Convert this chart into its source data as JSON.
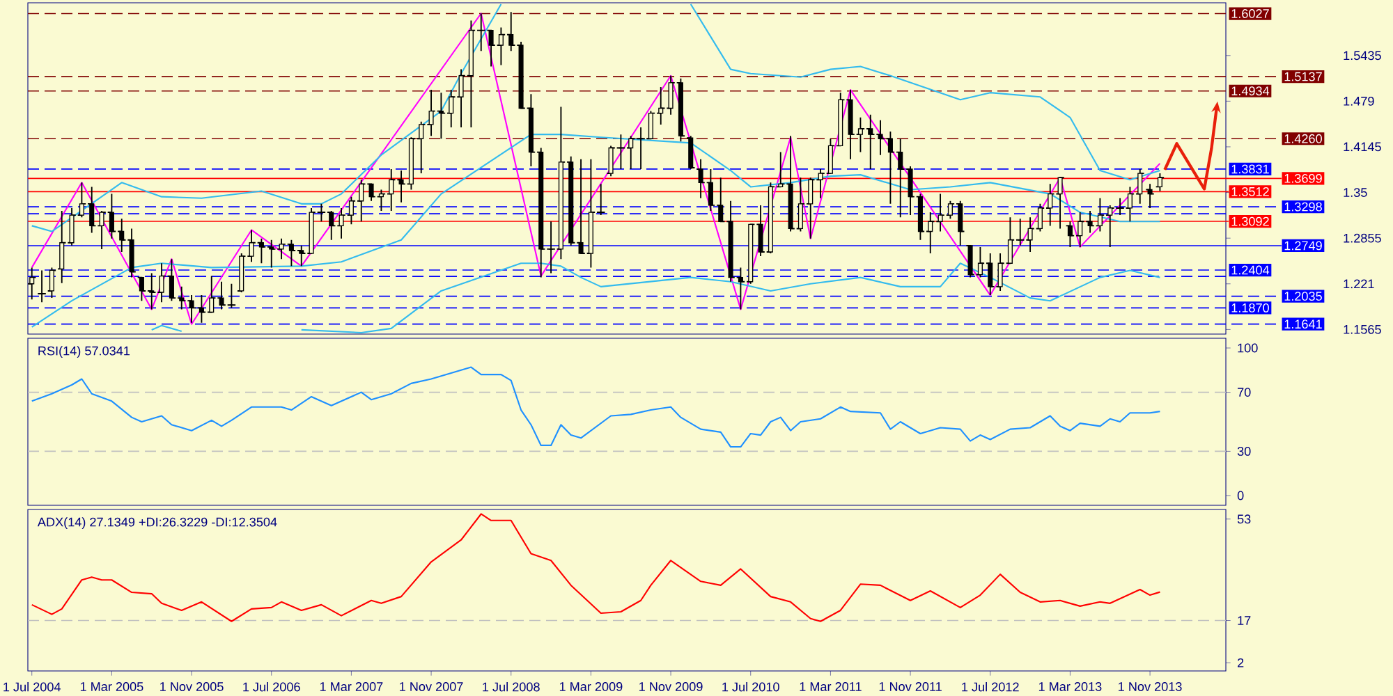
{
  "chart_data": [
    {
      "type": "candlestick",
      "color": "#000000",
      "tick_labels": "y",
      "x": [
        "2004-07",
        "2004-08",
        "2004-09",
        "2004-10",
        "2004-11",
        "2004-12",
        "2005-01",
        "2005-02",
        "2005-03",
        "2005-04",
        "2005-05",
        "2005-06",
        "2005-07",
        "2005-08",
        "2005-09",
        "2005-10",
        "2005-11",
        "2005-12",
        "2006-01",
        "2006-02",
        "2006-03",
        "2006-04",
        "2006-05",
        "2006-06",
        "2006-07",
        "2006-08",
        "2006-09",
        "2006-10",
        "2006-11",
        "2006-12",
        "2007-01",
        "2007-02",
        "2007-03",
        "2007-04",
        "2007-05",
        "2007-06",
        "2007-07",
        "2007-08",
        "2007-09",
        "2007-10",
        "2007-11",
        "2007-12",
        "2008-01",
        "2008-02",
        "2008-03",
        "2008-04",
        "2008-05",
        "2008-06",
        "2008-07",
        "2008-08",
        "2008-09",
        "2008-10",
        "2008-11",
        "2008-12",
        "2009-01",
        "2009-02",
        "2009-03",
        "2009-04",
        "2009-05",
        "2009-06",
        "2009-07",
        "2009-08",
        "2009-09",
        "2009-10",
        "2009-11",
        "2009-12",
        "2010-01",
        "2010-02",
        "2010-03",
        "2010-04",
        "2010-05",
        "2010-06",
        "2010-07",
        "2010-08",
        "2010-09",
        "2010-10",
        "2010-11",
        "2010-12",
        "2011-01",
        "2011-02",
        "2011-03",
        "2011-04",
        "2011-05",
        "2011-06",
        "2011-07",
        "2011-08",
        "2011-09",
        "2011-10",
        "2011-11",
        "2011-12",
        "2012-01",
        "2012-02",
        "2012-03",
        "2012-04",
        "2012-05",
        "2012-06",
        "2012-07",
        "2012-08",
        "2012-09",
        "2012-10",
        "2012-11",
        "2012-12",
        "2013-01",
        "2013-02",
        "2013-03",
        "2013-04",
        "2013-05",
        "2013-06",
        "2013-07",
        "2013-08",
        "2013-09",
        "2013-10",
        "2013-11",
        "2013-12"
      ],
      "ohlc": [
        [
          1.221,
          1.244,
          1.199,
          1.23
        ],
        [
          1.207,
          1.24,
          1.195,
          1.207
        ],
        [
          1.211,
          1.244,
          1.201,
          1.24
        ],
        [
          1.242,
          1.324,
          1.222,
          1.279
        ],
        [
          1.279,
          1.328,
          1.275,
          1.318
        ],
        [
          1.318,
          1.364,
          1.315,
          1.334
        ],
        [
          1.334,
          1.358,
          1.293,
          1.303
        ],
        [
          1.303,
          1.324,
          1.27,
          1.322
        ],
        [
          1.322,
          1.348,
          1.285,
          1.295
        ],
        [
          1.295,
          1.313,
          1.266,
          1.283
        ],
        [
          1.283,
          1.299,
          1.23,
          1.238
        ],
        [
          1.23,
          1.23,
          1.197,
          1.211
        ],
        [
          1.211,
          1.236,
          1.185,
          1.209
        ],
        [
          1.209,
          1.25,
          1.195,
          1.232
        ],
        [
          1.232,
          1.256,
          1.197,
          1.201
        ],
        [
          1.201,
          1.217,
          1.185,
          1.197
        ],
        [
          1.197,
          1.205,
          1.166,
          1.187
        ],
        [
          1.187,
          1.205,
          1.166,
          1.181
        ],
        [
          1.181,
          1.232,
          1.181,
          1.201
        ],
        [
          1.201,
          1.224,
          1.185,
          1.191
        ],
        [
          1.191,
          1.221,
          1.187,
          1.191
        ],
        [
          1.211,
          1.264,
          1.209,
          1.26
        ],
        [
          1.26,
          1.297,
          1.252,
          1.279
        ],
        [
          1.279,
          1.285,
          1.25,
          1.273
        ],
        [
          1.273,
          1.283,
          1.244,
          1.27
        ],
        [
          1.27,
          1.285,
          1.256,
          1.277
        ],
        [
          1.277,
          1.283,
          1.246,
          1.268
        ],
        [
          1.268,
          1.275,
          1.246,
          1.264
        ],
        [
          1.264,
          1.328,
          1.264,
          1.322
        ],
        [
          1.322,
          1.334,
          1.309,
          1.322
        ],
        [
          1.322,
          1.324,
          1.283,
          1.303
        ],
        [
          1.303,
          1.328,
          1.285,
          1.318
        ],
        [
          1.318,
          1.344,
          1.305,
          1.338
        ],
        [
          1.338,
          1.368,
          1.309,
          1.362
        ],
        [
          1.362,
          1.362,
          1.338,
          1.344
        ],
        [
          1.344,
          1.354,
          1.324,
          1.348
        ],
        [
          1.348,
          1.383,
          1.324,
          1.368
        ],
        [
          1.368,
          1.381,
          1.336,
          1.362
        ],
        [
          1.362,
          1.428,
          1.354,
          1.426
        ],
        [
          1.426,
          1.45,
          1.377,
          1.446
        ],
        [
          1.446,
          1.495,
          1.43,
          1.465
        ],
        [
          1.465,
          1.491,
          1.426,
          1.462
        ],
        [
          1.462,
          1.495,
          1.442,
          1.485
        ],
        [
          1.485,
          1.524,
          1.442,
          1.515
        ],
        [
          1.515,
          1.593,
          1.442,
          1.579
        ],
        [
          1.579,
          1.603,
          1.55,
          1.579
        ],
        [
          1.579,
          1.579,
          1.528,
          1.558
        ],
        [
          1.558,
          1.583,
          1.53,
          1.573
        ],
        [
          1.573,
          1.605,
          1.55,
          1.558
        ],
        [
          1.558,
          1.563,
          1.469,
          1.469
        ],
        [
          1.469,
          1.489,
          1.387,
          1.407
        ],
        [
          1.407,
          1.413,
          1.23,
          1.27
        ],
        [
          1.27,
          1.309,
          1.236,
          1.27
        ],
        [
          1.27,
          1.471,
          1.256,
          1.393
        ],
        [
          1.393,
          1.401,
          1.275,
          1.279
        ],
        [
          1.279,
          1.397,
          1.264,
          1.264
        ],
        [
          1.264,
          1.397,
          1.244,
          1.322
        ],
        [
          1.322,
          1.362,
          1.318,
          1.322
        ],
        [
          1.377,
          1.416,
          1.373,
          1.413
        ],
        [
          1.413,
          1.432,
          1.383,
          1.413
        ],
        [
          1.413,
          1.43,
          1.383,
          1.426
        ],
        [
          1.426,
          1.442,
          1.383,
          1.426
        ],
        [
          1.426,
          1.465,
          1.426,
          1.462
        ],
        [
          1.462,
          1.499,
          1.446,
          1.469
        ],
        [
          1.469,
          1.515,
          1.46,
          1.505
        ],
        [
          1.505,
          1.511,
          1.422,
          1.43
        ],
        [
          1.427,
          1.43,
          1.383,
          1.385
        ],
        [
          1.383,
          1.397,
          1.342,
          1.364
        ],
        [
          1.364,
          1.383,
          1.324,
          1.332
        ],
        [
          1.332,
          1.371,
          1.309,
          1.309
        ],
        [
          1.309,
          1.338,
          1.224,
          1.23
        ],
        [
          1.23,
          1.244,
          1.185,
          1.224
        ],
        [
          1.224,
          1.305,
          1.221,
          1.305
        ],
        [
          1.305,
          1.332,
          1.26,
          1.266
        ],
        [
          1.266,
          1.364,
          1.264,
          1.358
        ],
        [
          1.358,
          1.407,
          1.358,
          1.362
        ],
        [
          1.362,
          1.43,
          1.295,
          1.299
        ],
        [
          1.299,
          1.371,
          1.295,
          1.334
        ],
        [
          1.334,
          1.371,
          1.285,
          1.368
        ],
        [
          1.368,
          1.383,
          1.342,
          1.377
        ],
        [
          1.377,
          1.426,
          1.377,
          1.416
        ],
        [
          1.416,
          1.491,
          1.416,
          1.481
        ],
        [
          1.481,
          1.495,
          1.397,
          1.432
        ],
        [
          1.432,
          1.456,
          1.407,
          1.44
        ],
        [
          1.44,
          1.46,
          1.383,
          1.432
        ],
        [
          1.432,
          1.452,
          1.403,
          1.426
        ],
        [
          1.426,
          1.436,
          1.334,
          1.407
        ],
        [
          1.407,
          1.426,
          1.315,
          1.383
        ],
        [
          1.383,
          1.387,
          1.318,
          1.344
        ],
        [
          1.344,
          1.348,
          1.283,
          1.295
        ],
        [
          1.295,
          1.322,
          1.264,
          1.309
        ],
        [
          1.309,
          1.348,
          1.295,
          1.318
        ],
        [
          1.318,
          1.338,
          1.313,
          1.334
        ],
        [
          1.334,
          1.338,
          1.275,
          1.295
        ],
        [
          1.275,
          1.275,
          1.23,
          1.234
        ],
        [
          1.234,
          1.273,
          1.23,
          1.25
        ],
        [
          1.25,
          1.264,
          1.205,
          1.217
        ],
        [
          1.217,
          1.264,
          1.211,
          1.25
        ],
        [
          1.25,
          1.315,
          1.25,
          1.283
        ],
        [
          1.283,
          1.313,
          1.275,
          1.283
        ],
        [
          1.283,
          1.315,
          1.266,
          1.299
        ],
        [
          1.299,
          1.334,
          1.295,
          1.328
        ],
        [
          1.328,
          1.362,
          1.303,
          1.348
        ],
        [
          1.348,
          1.371,
          1.299,
          1.371
        ],
        [
          1.303,
          1.309,
          1.273,
          1.289
        ],
        [
          1.289,
          1.322,
          1.273,
          1.309
        ],
        [
          1.309,
          1.324,
          1.293,
          1.303
        ],
        [
          1.303,
          1.342,
          1.295,
          1.318
        ],
        [
          1.318,
          1.332,
          1.273,
          1.328
        ],
        [
          1.328,
          1.342,
          1.318,
          1.328
        ],
        [
          1.328,
          1.358,
          1.309,
          1.348
        ],
        [
          1.348,
          1.383,
          1.334,
          1.377
        ],
        [
          1.354,
          1.362,
          1.328,
          1.348
        ],
        [
          1.358,
          1.377,
          1.352,
          1.371
        ]
      ],
      "series": [
        {
          "type": "line",
          "color": "#ff00ff",
          "x": [
            "2004-07",
            "2004-12",
            "2005-07",
            "2005-09",
            "2005-11",
            "2006-05",
            "2006-10",
            "2008-04",
            "2008-10",
            "2009-11",
            "2010-06",
            "2010-11",
            "2011-01",
            "2011-05",
            "2012-07",
            "2013-02",
            "2013-04",
            "2013-12"
          ],
          "values": [
            1.244,
            1.364,
            1.185,
            1.256,
            1.164,
            1.297,
            1.246,
            1.603,
            1.232,
            1.515,
            1.185,
            1.428,
            1.285,
            1.495,
            1.205,
            1.371,
            1.273,
            1.391
          ]
        },
        {
          "type": "line",
          "color": "#33bbee",
          "x": [
            "2004-07",
            "2004-09",
            "2005-04",
            "2005-08",
            "2005-12",
            "2006-06",
            "2006-10",
            "2006-12",
            "2007-02",
            "2007-06",
            "2007-12",
            "2008-02",
            "2008-06",
            "2009-03",
            "2010-01",
            "2010-05",
            "2010-07",
            "2010-12",
            "2011-03",
            "2011-06",
            "2011-09",
            "2012-04",
            "2012-07",
            "2012-12",
            "2013-03",
            "2013-06",
            "2013-09",
            "2013-12"
          ],
          "values": [
            1.303,
            1.295,
            1.364,
            1.344,
            1.342,
            1.352,
            1.334,
            1.334,
            1.348,
            1.403,
            1.465,
            1.518,
            1.616,
            null,
            1.616,
            1.524,
            1.518,
            1.513,
            1.524,
            1.528,
            1.515,
            1.481,
            1.491,
            1.485,
            1.456,
            1.381,
            1.368,
            1.381
          ]
        },
        {
          "type": "line",
          "color": "#33bbee",
          "x": [
            "2004-07",
            "2004-11",
            "2005-05",
            "2005-08",
            "2006-01",
            "2006-10",
            "2007-02",
            "2007-08",
            "2007-12",
            "2008-09",
            "2008-12",
            "2009-04",
            "2010-01",
            "2010-05",
            "2010-07",
            "2010-11",
            "2011-03",
            "2011-06",
            "2011-11",
            "2012-03",
            "2012-07",
            "2013-01",
            "2013-04",
            "2013-08",
            "2013-12"
          ],
          "values": [
            1.16,
            1.197,
            1.244,
            1.25,
            1.244,
            1.246,
            1.252,
            1.283,
            1.348,
            1.432,
            1.432,
            1.428,
            1.42,
            1.381,
            1.358,
            1.364,
            1.373,
            1.375,
            1.354,
            1.358,
            1.364,
            1.348,
            1.322,
            1.309,
            1.309
          ]
        },
        {
          "type": "line",
          "color": "#33bbee",
          "x": [
            "2005-07",
            "2005-08",
            "2005-10",
            "2006-03",
            "2006-10",
            "2007-04",
            "2007-07",
            "2007-12",
            "2008-08",
            "2008-10",
            "2008-12",
            "2009-02",
            "2009-04",
            "2010-01",
            "2010-05",
            "2010-09",
            "2011-01",
            "2011-06",
            "2011-10",
            "2012-02",
            "2012-04",
            "2012-07",
            "2012-11",
            "2013-01",
            "2013-06",
            "2013-09",
            "2013-12"
          ],
          "values": [
            1.156,
            1.162,
            1.154,
            null,
            1.156,
            1.152,
            1.158,
            1.211,
            1.25,
            1.25,
            1.246,
            1.23,
            1.217,
            1.23,
            1.224,
            1.211,
            1.221,
            1.23,
            1.217,
            1.217,
            1.25,
            1.23,
            1.201,
            1.197,
            1.23,
            1.24,
            1.23
          ]
        }
      ],
      "xlim": [
        "2004-06-19",
        "2014-06-19"
      ],
      "ylim": [
        1.15,
        1.618
      ],
      "yticks": [
        1.5435,
        1.479,
        1.4145,
        1.35,
        1.2855,
        1.221,
        1.1565
      ],
      "ref_lines": [
        {
          "axis": "y",
          "value": 1.6027,
          "label": "1.6027",
          "color": "#800000",
          "line_style": "dashed"
        },
        {
          "axis": "y",
          "value": 1.5137,
          "label": "1.5137",
          "color": "#800000",
          "line_style": "dashed"
        },
        {
          "axis": "y",
          "value": 1.4934,
          "label": "1.4934",
          "color": "#800000",
          "line_style": "dashed"
        },
        {
          "axis": "y",
          "value": 1.426,
          "label": "1.4260",
          "color": "#800000",
          "line_style": "dashed"
        },
        {
          "axis": "y",
          "value": 1.3831,
          "label": "1.3831",
          "color": "#0000ff",
          "line_style": "dashed"
        },
        {
          "axis": "y",
          "value": 1.3699,
          "label": "1.3699",
          "color": "#ff0000",
          "line_style": "solid"
        },
        {
          "axis": "y",
          "value": 1.3512,
          "label": "1.3512",
          "color": "#ff0000",
          "line_style": "solid"
        },
        {
          "axis": "y",
          "value": 1.3298,
          "label": "1.3298",
          "color": "#0000ff",
          "line_style": "dashed"
        },
        {
          "axis": "y",
          "value": 1.32,
          "color": "#0000ff",
          "line_style": "dashed"
        },
        {
          "axis": "y",
          "value": 1.3092,
          "label": "1.3092",
          "color": "#ff0000",
          "line_style": "solid"
        },
        {
          "axis": "y",
          "value": 1.2749,
          "label": "1.2749",
          "color": "#0000ff",
          "line_style": "solid"
        },
        {
          "axis": "y",
          "value": 1.2404,
          "label": "1.2404",
          "color": "#0000ff",
          "line_style": "dashed"
        },
        {
          "axis": "y",
          "value": 1.2315,
          "color": "#0000ff",
          "line_style": "dashed"
        },
        {
          "axis": "y",
          "value": 1.2035,
          "label": "1.2035",
          "color": "#0000ff",
          "line_style": "dashed"
        },
        {
          "axis": "y",
          "value": 1.187,
          "label": "1.1870",
          "color": "#0000ff",
          "line_style": "dashed"
        },
        {
          "axis": "y",
          "value": 1.1641,
          "label": "1.1641",
          "color": "#0000ff",
          "line_style": "dashed"
        }
      ]
    },
    {
      "type": "line",
      "title": "RSI(14) 57.0341",
      "tick_labels": "y",
      "series": [
        {
          "color": "#1e90ff",
          "x": [
            "2004-07",
            "2004-09",
            "2004-11",
            "2004-12",
            "2005-01",
            "2005-03",
            "2005-05",
            "2005-06",
            "2005-08",
            "2005-09",
            "2005-11",
            "2006-01",
            "2006-02",
            "2006-03",
            "2006-05",
            "2006-08",
            "2006-09",
            "2006-11",
            "2007-01",
            "2007-04",
            "2007-05",
            "2007-07",
            "2007-09",
            "2007-11",
            "2008-03",
            "2008-04",
            "2008-06",
            "2008-07",
            "2008-08",
            "2008-09",
            "2008-10",
            "2008-11",
            "2008-12",
            "2009-01",
            "2009-02",
            "2009-03",
            "2009-05",
            "2009-07",
            "2009-09",
            "2009-11",
            "2009-12",
            "2010-02",
            "2010-04",
            "2010-05",
            "2010-06",
            "2010-07",
            "2010-08",
            "2010-09",
            "2010-10",
            "2010-11",
            "2010-12",
            "2011-02",
            "2011-04",
            "2011-05",
            "2011-08",
            "2011-09",
            "2011-10",
            "2011-12",
            "2012-02",
            "2012-04",
            "2012-05",
            "2012-06",
            "2012-07",
            "2012-09",
            "2012-11",
            "2013-01",
            "2013-02",
            "2013-03",
            "2013-04",
            "2013-06",
            "2013-07",
            "2013-08",
            "2013-09",
            "2013-11",
            "2013-12"
          ],
          "values": [
            64,
            69,
            75,
            79,
            69,
            64,
            53,
            50,
            54,
            48,
            44,
            51,
            47,
            51,
            60,
            60,
            58,
            67,
            61,
            70,
            65,
            69,
            76,
            79,
            87,
            82,
            82,
            78,
            58,
            48,
            34,
            34,
            48,
            41,
            39,
            44,
            54,
            55,
            58,
            60,
            53,
            45,
            43,
            33,
            33,
            42,
            41,
            50,
            53,
            44,
            50,
            52,
            60,
            57,
            56,
            45,
            50,
            42,
            46,
            45,
            37,
            41,
            38,
            45,
            46,
            54,
            47,
            44,
            49,
            47,
            52,
            50,
            56,
            56,
            57
          ]
        }
      ],
      "xlim": [
        "2004-06-19",
        "2014-06-19"
      ],
      "ylim": [
        -6.6,
        106.6
      ],
      "yticks": [
        0,
        30,
        70,
        100
      ],
      "ref_lines": [
        {
          "axis": "y",
          "value": 70,
          "color": "#c0c0c0",
          "line_style": "dashed"
        },
        {
          "axis": "y",
          "value": 30,
          "color": "#c0c0c0",
          "line_style": "dashed"
        }
      ]
    },
    {
      "type": "line",
      "title": "ADX(14) 27.1349 +DI:26.3229 -DI:12.3504",
      "series": [
        {
          "color": "#ff0000",
          "x": [
            "2004-07",
            "2004-09",
            "2004-10",
            "2004-12",
            "2005-01",
            "2005-02",
            "2005-03",
            "2005-05",
            "2005-07",
            "2005-08",
            "2005-10",
            "2005-12",
            "2006-03",
            "2006-05",
            "2006-07",
            "2006-08",
            "2006-10",
            "2006-12",
            "2007-02",
            "2007-05",
            "2007-06",
            "2007-08",
            "2007-11",
            "2008-02",
            "2008-04",
            "2008-05",
            "2008-07",
            "2008-09",
            "2008-11",
            "2009-01",
            "2009-04",
            "2009-06",
            "2009-08",
            "2009-09",
            "2009-11",
            "2010-02",
            "2010-04",
            "2010-06",
            "2010-09",
            "2010-11",
            "2011-01",
            "2011-02",
            "2011-04",
            "2011-06",
            "2011-08",
            "2011-11",
            "2012-01",
            "2012-04",
            "2012-06",
            "2012-08",
            "2012-10",
            "2012-12",
            "2013-02",
            "2013-04",
            "2013-06",
            "2013-07",
            "2013-10",
            "2013-11",
            "2013-12"
          ],
          "values": [
            22.6,
            19.2,
            21.1,
            31.4,
            32.4,
            31.4,
            31.4,
            27,
            26.5,
            23.1,
            20.6,
            23.6,
            16.7,
            21.1,
            21.6,
            23.6,
            20.6,
            22.6,
            18.7,
            24.1,
            23.1,
            25.5,
            37.8,
            45.6,
            54.8,
            52.5,
            52.5,
            40.7,
            38.3,
            29.5,
            19.6,
            20.1,
            24.1,
            29.5,
            38.3,
            30.9,
            29.5,
            35.3,
            25.5,
            23.6,
            17.7,
            16.7,
            20.6,
            29.9,
            29.5,
            24.1,
            27.5,
            21.6,
            26,
            33.4,
            27,
            23.6,
            24.1,
            22.1,
            23.6,
            23.1,
            28,
            26,
            27.1
          ]
        }
      ],
      "xlim": [
        "2004-06-19",
        "2014-06-19"
      ],
      "ylim": [
        -0.9,
        56.4
      ],
      "yticks": [
        2,
        17,
        53
      ],
      "xticks": [
        {
          "value": "2004-07-01",
          "label": "1 Jul 2004"
        },
        {
          "value": "2005-03-01",
          "label": "1 Mar 2005"
        },
        {
          "value": "2005-11-01",
          "label": "1 Nov 2005"
        },
        {
          "value": "2006-07-01",
          "label": "1 Jul 2006"
        },
        {
          "value": "2007-03-01",
          "label": "1 Mar 2007"
        },
        {
          "value": "2007-11-01",
          "label": "1 Nov 2007"
        },
        {
          "value": "2008-07-01",
          "label": "1 Jul 2008"
        },
        {
          "value": "2009-03-01",
          "label": "1 Mar 2009"
        },
        {
          "value": "2009-11-01",
          "label": "1 Nov 2009"
        },
        {
          "value": "2010-07-01",
          "label": "1 Jul 2010"
        },
        {
          "value": "2011-03-01",
          "label": "1 Mar 2011"
        },
        {
          "value": "2011-11-01",
          "label": "1 Nov 2011"
        },
        {
          "value": "2012-07-01",
          "label": "1 Jul 2012"
        },
        {
          "value": "2013-03-01",
          "label": "1 Mar 2013"
        },
        {
          "value": "2013-11-01",
          "label": "1 Nov 2013"
        }
      ],
      "ref_lines": [
        {
          "axis": "y",
          "value": 17,
          "color": "#c0c0c0",
          "line_style": "dashed"
        }
      ]
    }
  ]
}
